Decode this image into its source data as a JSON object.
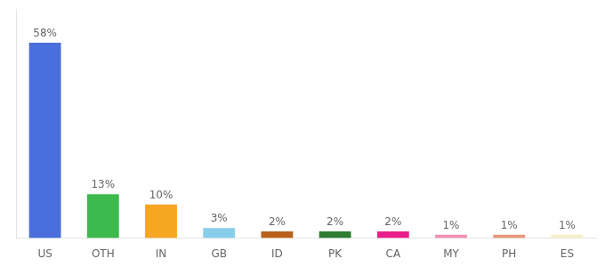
{
  "chart_data": {
    "type": "bar",
    "categories": [
      "US",
      "OTH",
      "IN",
      "GB",
      "ID",
      "PK",
      "CA",
      "MY",
      "PH",
      "ES"
    ],
    "values": [
      58,
      13,
      10,
      3,
      2,
      2,
      2,
      1,
      1,
      1
    ],
    "value_labels": [
      "58%",
      "13%",
      "10%",
      "3%",
      "2%",
      "2%",
      "2%",
      "1%",
      "1%",
      "1%"
    ],
    "colors": [
      "#4a6fdc",
      "#3dba4e",
      "#f5a623",
      "#87ceeb",
      "#b8601a",
      "#2e7d32",
      "#e91e8c",
      "#f48fb1",
      "#e8967a",
      "#f5f0c8"
    ],
    "ylim": [
      0,
      68
    ],
    "grid": false,
    "data_labels": true,
    "tick_labels": "x"
  }
}
